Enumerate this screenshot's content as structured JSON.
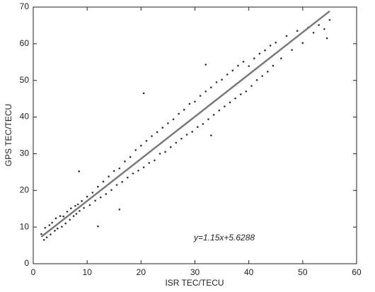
{
  "chart_data": {
    "type": "scatter",
    "xlabel": "ISR TEC/TECU",
    "ylabel": "GPS TEC/TECU",
    "annotation": "y=1.15x+5.6288",
    "xlim": [
      0,
      60
    ],
    "ylim": [
      0,
      70
    ],
    "xticks": [
      0,
      10,
      20,
      30,
      40,
      50,
      60
    ],
    "yticks": [
      0,
      10,
      20,
      30,
      40,
      50,
      60,
      70
    ],
    "grid": false,
    "series": [
      {
        "mode": "markers",
        "color": "#333333",
        "x": [
          1.5,
          2,
          2.2,
          2.5,
          3,
          3.2,
          3.5,
          4,
          4.2,
          4.5,
          5,
          5.3,
          5.6,
          6,
          6.3,
          6.8,
          7,
          7.5,
          7.8,
          8,
          8.3,
          8.6,
          9,
          9.4,
          10,
          10.5,
          11,
          11.5,
          12,
          12.5,
          13,
          13.5,
          14,
          14.5,
          15,
          15.5,
          16,
          16.5,
          17,
          17.5,
          18,
          18.5,
          19,
          19.5,
          20,
          20.5,
          21,
          21.5,
          22,
          22.5,
          23,
          23.5,
          24,
          24.5,
          25,
          25.5,
          26,
          26.5,
          27,
          27.5,
          28,
          28.5,
          29,
          29.5,
          30,
          30.5,
          31,
          31.5,
          32,
          32.5,
          33,
          33.5,
          34,
          34.5,
          35,
          35.5,
          36,
          36.5,
          37,
          37.5,
          38,
          38.5,
          39,
          39.5,
          40,
          40.5,
          41,
          41.5,
          42,
          42.5,
          43,
          43.5,
          44,
          44.5,
          45,
          46,
          47,
          48,
          49,
          50,
          51,
          52,
          53,
          54,
          55,
          8.5,
          12,
          20.5,
          33,
          16,
          32,
          54.5
        ],
        "values": [
          8.1,
          6.5,
          9.8,
          7.2,
          10.5,
          8.0,
          11.2,
          9.0,
          12.4,
          9.6,
          13.0,
          10.1,
          12.9,
          11.0,
          14.2,
          12.0,
          15.1,
          13.0,
          15.8,
          13.6,
          16.2,
          14.4,
          17.1,
          15.2,
          18.3,
          16.0,
          19.4,
          17.2,
          21.0,
          18.1,
          22.4,
          19.0,
          23.8,
          20.1,
          25.3,
          21.5,
          26.0,
          22.3,
          27.9,
          23.5,
          29.1,
          24.6,
          31.0,
          25.4,
          32.2,
          26.3,
          33.5,
          27.5,
          34.8,
          28.2,
          35.9,
          30.0,
          37.1,
          30.5,
          38.3,
          31.8,
          39.4,
          33.0,
          40.9,
          34.1,
          42.0,
          35.2,
          43.6,
          36.0,
          44.2,
          37.3,
          45.8,
          38.1,
          47.0,
          39.4,
          48.1,
          40.6,
          49.5,
          41.8,
          50.2,
          42.9,
          51.6,
          44.0,
          52.7,
          45.1,
          54.0,
          46.2,
          55.1,
          47.0,
          53.9,
          48.5,
          56.0,
          50.1,
          57.3,
          51.2,
          58.2,
          52.4,
          59.5,
          54.0,
          60.3,
          56.0,
          62.1,
          58.3,
          63.5,
          60.2,
          64.4,
          63.0,
          65.1,
          64.0,
          66.5,
          25.2,
          10.2,
          46.5,
          35.0,
          14.8,
          54.3,
          61.5
        ]
      },
      {
        "mode": "line",
        "color": "#7a7a7a",
        "x": [
          1.5,
          55
        ],
        "values": [
          7.35,
          68.88
        ]
      }
    ]
  }
}
